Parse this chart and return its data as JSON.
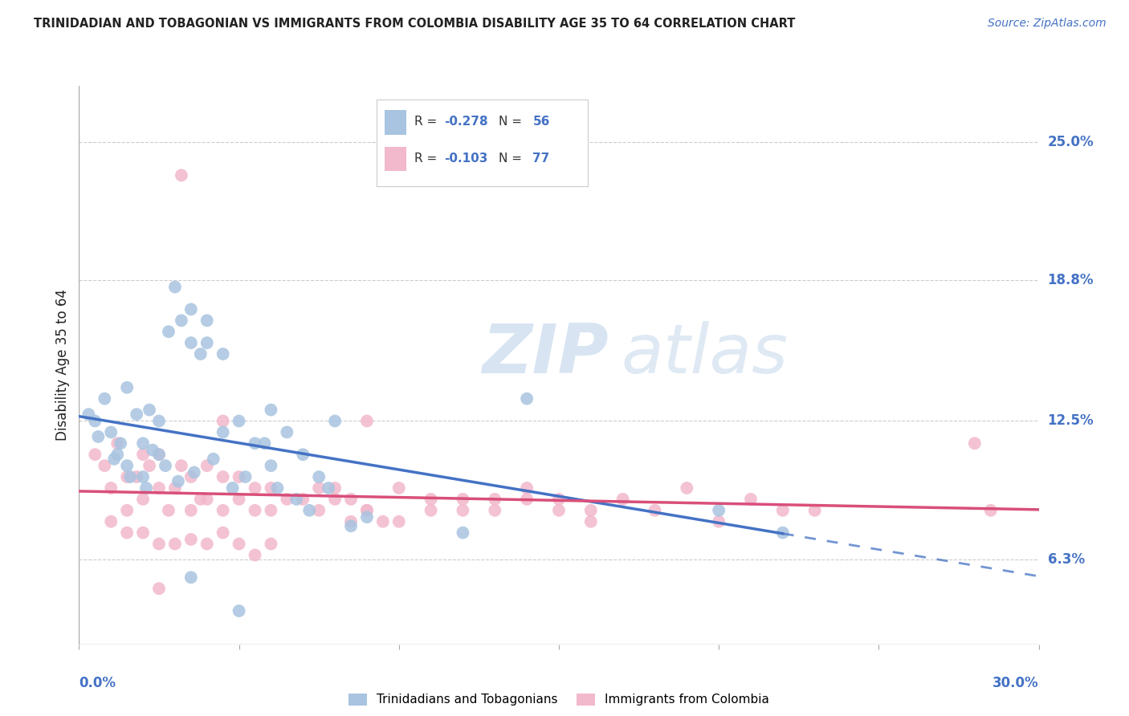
{
  "title": "TRINIDADIAN AND TOBAGONIAN VS IMMIGRANTS FROM COLOMBIA DISABILITY AGE 35 TO 64 CORRELATION CHART",
  "source": "Source: ZipAtlas.com",
  "xlabel_bottom_left": "0.0%",
  "xlabel_bottom_right": "30.0%",
  "ylabel": "Disability Age 35 to 64",
  "ytick_labels": [
    "6.3%",
    "12.5%",
    "18.8%",
    "25.0%"
  ],
  "ytick_values": [
    6.3,
    12.5,
    18.8,
    25.0
  ],
  "xlim": [
    0.0,
    30.0
  ],
  "ylim": [
    2.5,
    27.5
  ],
  "legend_blue_r": "R = -0.278",
  "legend_blue_n": "N = 56",
  "legend_pink_r": "R = -0.103",
  "legend_pink_n": "N = 77",
  "legend_label_blue": "Trinidadians and Tobagonians",
  "legend_label_pink": "Immigrants from Colombia",
  "blue_color": "#a8c4e0",
  "pink_color": "#f2b8cc",
  "blue_line_color": "#4472c4",
  "pink_line_color": "#d94f7a",
  "blue_scatter": [
    [
      0.5,
      12.5
    ],
    [
      0.8,
      13.5
    ],
    [
      1.0,
      12.0
    ],
    [
      1.2,
      11.0
    ],
    [
      1.5,
      10.5
    ],
    [
      1.5,
      14.0
    ],
    [
      1.8,
      12.8
    ],
    [
      2.0,
      11.5
    ],
    [
      2.0,
      10.0
    ],
    [
      2.2,
      13.0
    ],
    [
      2.5,
      11.0
    ],
    [
      2.5,
      12.5
    ],
    [
      2.8,
      16.5
    ],
    [
      3.0,
      18.5
    ],
    [
      3.2,
      17.0
    ],
    [
      3.5,
      17.5
    ],
    [
      3.5,
      16.0
    ],
    [
      3.8,
      15.5
    ],
    [
      4.0,
      17.0
    ],
    [
      4.0,
      16.0
    ],
    [
      4.5,
      15.5
    ],
    [
      4.5,
      12.0
    ],
    [
      5.0,
      12.5
    ],
    [
      5.5,
      11.5
    ],
    [
      6.0,
      13.0
    ],
    [
      6.0,
      10.5
    ],
    [
      6.5,
      12.0
    ],
    [
      7.0,
      11.0
    ],
    [
      7.5,
      10.0
    ],
    [
      8.0,
      12.5
    ],
    [
      0.3,
      12.8
    ],
    [
      0.6,
      11.8
    ],
    [
      1.1,
      10.8
    ],
    [
      1.3,
      11.5
    ],
    [
      1.6,
      10.0
    ],
    [
      2.1,
      9.5
    ],
    [
      2.3,
      11.2
    ],
    [
      2.7,
      10.5
    ],
    [
      3.1,
      9.8
    ],
    [
      3.6,
      10.2
    ],
    [
      4.2,
      10.8
    ],
    [
      4.8,
      9.5
    ],
    [
      5.2,
      10.0
    ],
    [
      5.8,
      11.5
    ],
    [
      6.2,
      9.5
    ],
    [
      6.8,
      9.0
    ],
    [
      7.2,
      8.5
    ],
    [
      7.8,
      9.5
    ],
    [
      8.5,
      7.8
    ],
    [
      9.0,
      8.2
    ],
    [
      14.0,
      13.5
    ],
    [
      20.0,
      8.5
    ],
    [
      5.0,
      4.0
    ],
    [
      12.0,
      7.5
    ],
    [
      22.0,
      7.5
    ],
    [
      3.5,
      5.5
    ]
  ],
  "pink_scatter": [
    [
      0.5,
      11.0
    ],
    [
      0.8,
      10.5
    ],
    [
      1.0,
      9.5
    ],
    [
      1.2,
      11.5
    ],
    [
      1.5,
      10.0
    ],
    [
      1.5,
      8.5
    ],
    [
      1.8,
      10.0
    ],
    [
      2.0,
      9.0
    ],
    [
      2.0,
      11.0
    ],
    [
      2.2,
      10.5
    ],
    [
      2.5,
      9.5
    ],
    [
      2.5,
      11.0
    ],
    [
      2.8,
      8.5
    ],
    [
      3.0,
      9.5
    ],
    [
      3.2,
      10.5
    ],
    [
      3.5,
      8.5
    ],
    [
      3.5,
      10.0
    ],
    [
      3.8,
      9.0
    ],
    [
      4.0,
      10.5
    ],
    [
      4.0,
      9.0
    ],
    [
      4.5,
      10.0
    ],
    [
      4.5,
      8.5
    ],
    [
      5.0,
      10.0
    ],
    [
      5.0,
      9.0
    ],
    [
      5.5,
      9.5
    ],
    [
      5.5,
      8.5
    ],
    [
      6.0,
      9.5
    ],
    [
      6.0,
      8.5
    ],
    [
      6.5,
      9.0
    ],
    [
      7.0,
      9.0
    ],
    [
      7.5,
      9.5
    ],
    [
      7.5,
      8.5
    ],
    [
      8.0,
      9.0
    ],
    [
      8.0,
      9.5
    ],
    [
      8.5,
      9.0
    ],
    [
      8.5,
      8.0
    ],
    [
      9.0,
      8.5
    ],
    [
      9.0,
      8.5
    ],
    [
      9.5,
      8.0
    ],
    [
      10.0,
      9.5
    ],
    [
      10.0,
      8.0
    ],
    [
      11.0,
      9.0
    ],
    [
      11.0,
      8.5
    ],
    [
      12.0,
      9.0
    ],
    [
      12.0,
      8.5
    ],
    [
      13.0,
      9.0
    ],
    [
      13.0,
      8.5
    ],
    [
      14.0,
      9.0
    ],
    [
      14.0,
      9.5
    ],
    [
      15.0,
      8.5
    ],
    [
      15.0,
      9.0
    ],
    [
      16.0,
      8.5
    ],
    [
      16.0,
      8.0
    ],
    [
      17.0,
      9.0
    ],
    [
      18.0,
      8.5
    ],
    [
      19.0,
      9.5
    ],
    [
      20.0,
      8.0
    ],
    [
      21.0,
      9.0
    ],
    [
      22.0,
      8.5
    ],
    [
      23.0,
      8.5
    ],
    [
      1.0,
      8.0
    ],
    [
      1.5,
      7.5
    ],
    [
      2.0,
      7.5
    ],
    [
      2.5,
      7.0
    ],
    [
      3.0,
      7.0
    ],
    [
      3.5,
      7.2
    ],
    [
      4.0,
      7.0
    ],
    [
      4.5,
      7.5
    ],
    [
      5.0,
      7.0
    ],
    [
      5.5,
      6.5
    ],
    [
      6.0,
      7.0
    ],
    [
      3.2,
      23.5
    ],
    [
      4.5,
      12.5
    ],
    [
      9.0,
      12.5
    ],
    [
      28.0,
      11.5
    ],
    [
      28.5,
      8.5
    ],
    [
      2.5,
      5.0
    ]
  ],
  "watermark_zip": "ZIP",
  "watermark_atlas": "atlas",
  "background_color": "#ffffff",
  "grid_color": "#cccccc",
  "title_color": "#222222",
  "axis_label_color": "#4472c4",
  "right_ytick_color": "#4472c4"
}
